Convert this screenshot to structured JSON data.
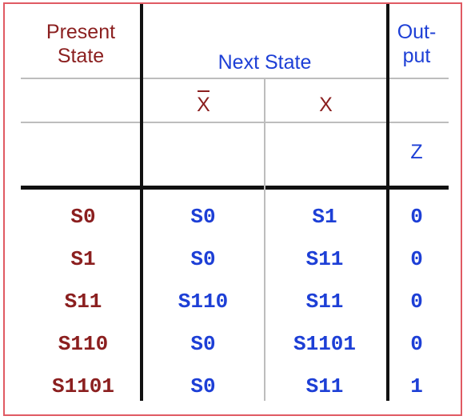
{
  "table": {
    "headers": {
      "present_state": [
        "Present",
        "State"
      ],
      "next_state": "Next State",
      "output": [
        "Out-",
        "put"
      ],
      "x_bar": "X",
      "x": "X",
      "z": "Z"
    },
    "rows": [
      {
        "present": "S0",
        "next_x_bar": "S0",
        "next_x": "S1",
        "output": "0"
      },
      {
        "present": "S1",
        "next_x_bar": "S0",
        "next_x": "S11",
        "output": "0"
      },
      {
        "present": "S11",
        "next_x_bar": "S110",
        "next_x": "S11",
        "output": "0"
      },
      {
        "present": "S110",
        "next_x_bar": "S0",
        "next_x": "S1101",
        "output": "0"
      },
      {
        "present": "S1101",
        "next_x_bar": "S0",
        "next_x": "S11",
        "output": "1"
      }
    ]
  },
  "colors": {
    "present_state_text": "#8b1f1f",
    "next_state_text": "#1d3fd6",
    "border": "#e05a63",
    "grid_thin": "#bdbdbd",
    "grid_thick": "#111111"
  }
}
